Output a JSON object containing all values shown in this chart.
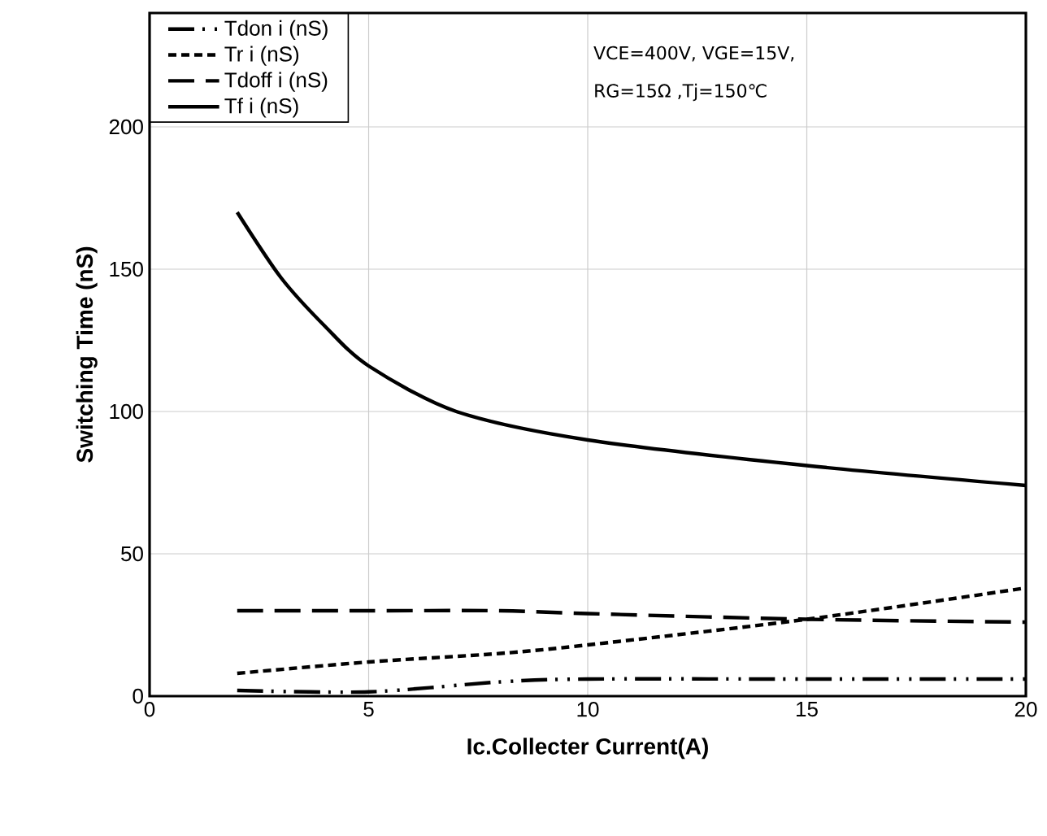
{
  "chart_data": {
    "type": "line",
    "xlabel": "Ic.Collecter Current(A)",
    "ylabel": "Switching Time (nS)",
    "xlim": [
      0,
      20
    ],
    "ylim": [
      0,
      240
    ],
    "xticks": [
      0,
      5,
      10,
      15,
      20
    ],
    "yticks": [
      0,
      50,
      100,
      150,
      200
    ],
    "grid": true,
    "legend": "top left",
    "marker": "none",
    "annotations": [
      "VCE=400V, VGE=15V,",
      "RG=15Ω ,Tj=150℃"
    ],
    "series": [
      {
        "name": "Tdon i (nS)",
        "color": "#000000",
        "line_style": "dashdotdot",
        "x": [
          2,
          5,
          8,
          10,
          15,
          20
        ],
        "values": [
          2,
          1.5,
          5,
          6,
          6,
          6
        ]
      },
      {
        "name": "Tr i (nS)",
        "color": "#000000",
        "line_style": "dashed",
        "x": [
          2,
          5,
          8,
          10,
          15,
          20
        ],
        "values": [
          8,
          12,
          15,
          18,
          27,
          38
        ]
      },
      {
        "name": "Tdoff i (nS)",
        "color": "#000000",
        "line_style": "longdashed",
        "x": [
          2,
          5,
          8,
          10,
          15,
          20
        ],
        "values": [
          30,
          30,
          30,
          29,
          27,
          26
        ]
      },
      {
        "name": "Tf i (nS)",
        "color": "#000000",
        "line_style": "solid",
        "x": [
          2,
          3,
          4,
          5,
          7,
          10,
          15,
          20
        ],
        "values": [
          170,
          147,
          130,
          116,
          100,
          90,
          81,
          74
        ]
      }
    ]
  }
}
